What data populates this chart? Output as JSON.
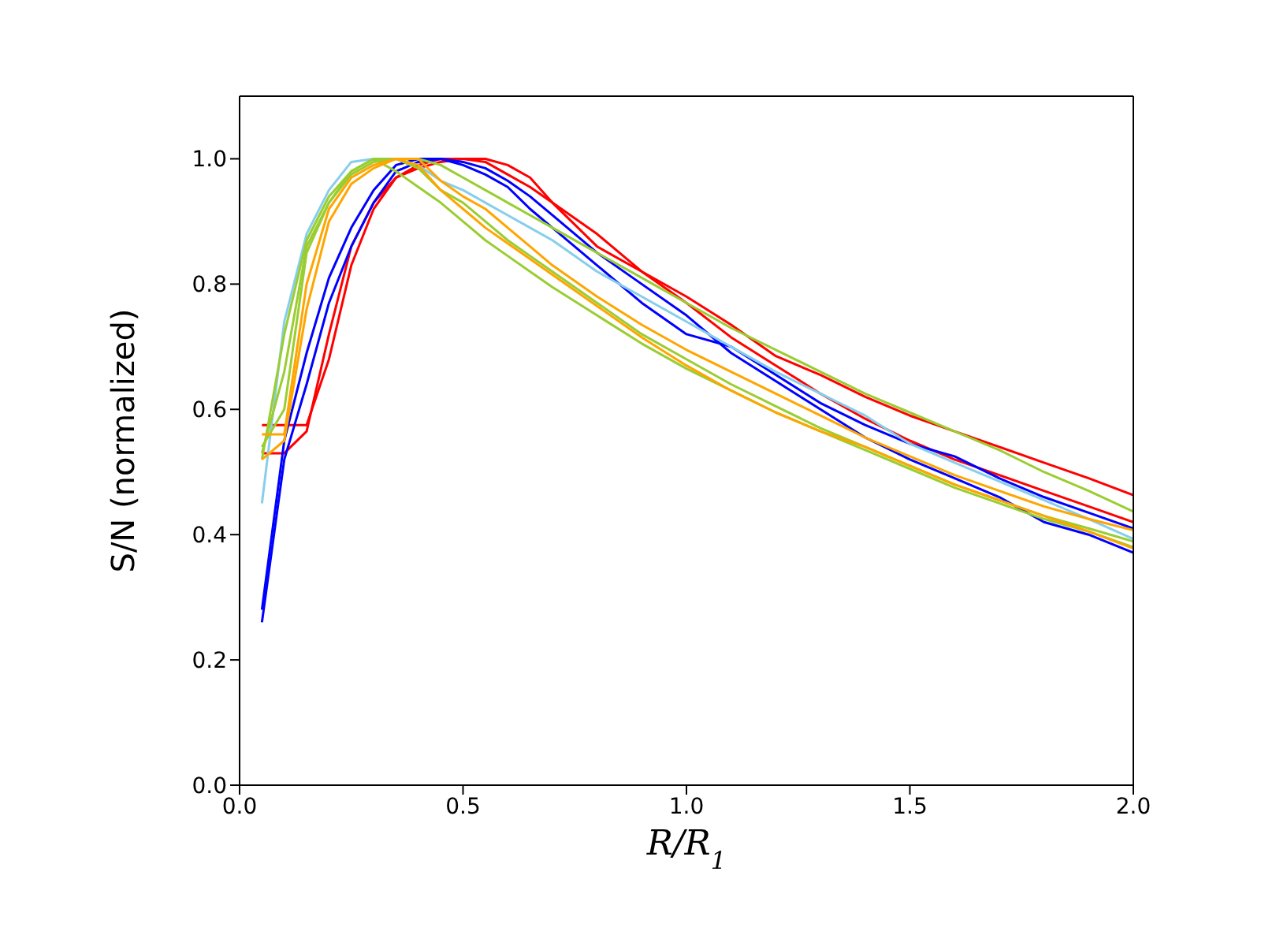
{
  "chart_data": {
    "type": "line",
    "xlabel": "R/R$_{1}$",
    "ylabel": "S/N (normalized)",
    "x": [
      0.05,
      0.1,
      0.15,
      0.2,
      0.25,
      0.3,
      0.35,
      0.4,
      0.45,
      0.5,
      0.55,
      0.6,
      0.65,
      0.7,
      0.8,
      0.9,
      1.0,
      1.1,
      1.2,
      1.3,
      1.4,
      1.5,
      1.6,
      1.7,
      1.8,
      1.9,
      2.0
    ],
    "series": [
      {
        "color": "#ff0000",
        "values": [
          0.575,
          0.575,
          0.575,
          0.68,
          0.83,
          0.92,
          0.97,
          0.99,
          1.0,
          1.0,
          1.0,
          0.99,
          0.97,
          0.93,
          0.86,
          0.82,
          0.78,
          0.735,
          0.685,
          0.655,
          0.62,
          0.59,
          0.565,
          0.54,
          0.515,
          0.49,
          0.463
        ]
      },
      {
        "color": "#ff0000",
        "values": [
          0.53,
          0.53,
          0.565,
          0.72,
          0.86,
          0.93,
          0.97,
          0.985,
          0.995,
          1.0,
          0.995,
          0.975,
          0.955,
          0.93,
          0.88,
          0.82,
          0.77,
          0.715,
          0.67,
          0.625,
          0.585,
          0.55,
          0.52,
          0.495,
          0.47,
          0.445,
          0.42
        ]
      },
      {
        "color": "#0000ff",
        "values": [
          0.28,
          0.55,
          0.69,
          0.81,
          0.89,
          0.95,
          0.99,
          1.0,
          1.0,
          0.99,
          0.975,
          0.955,
          0.92,
          0.89,
          0.83,
          0.77,
          0.72,
          0.7,
          0.655,
          0.61,
          0.575,
          0.545,
          0.525,
          0.49,
          0.46,
          0.435,
          0.41
        ]
      },
      {
        "color": "#0000ff",
        "values": [
          0.26,
          0.52,
          0.64,
          0.77,
          0.86,
          0.93,
          0.98,
          0.995,
          1.0,
          0.995,
          0.985,
          0.965,
          0.94,
          0.91,
          0.85,
          0.8,
          0.75,
          0.69,
          0.645,
          0.6,
          0.555,
          0.52,
          0.49,
          0.46,
          0.42,
          0.4,
          0.371
        ]
      },
      {
        "color": "#87ceeb",
        "values": [
          0.45,
          0.74,
          0.88,
          0.95,
          0.995,
          1.0,
          1.0,
          0.99,
          0.965,
          0.95,
          0.93,
          0.91,
          0.89,
          0.87,
          0.82,
          0.78,
          0.74,
          0.7,
          0.66,
          0.625,
          0.59,
          0.545,
          0.515,
          0.485,
          0.455,
          0.425,
          0.393
        ]
      },
      {
        "color": "#9acd32",
        "values": [
          0.53,
          0.66,
          0.86,
          0.93,
          0.975,
          0.995,
          1.0,
          1.0,
          0.99,
          0.97,
          0.95,
          0.93,
          0.91,
          0.89,
          0.85,
          0.81,
          0.77,
          0.73,
          0.695,
          0.66,
          0.625,
          0.595,
          0.565,
          0.535,
          0.5,
          0.47,
          0.437
        ]
      },
      {
        "color": "#9acd32",
        "values": [
          0.52,
          0.72,
          0.87,
          0.94,
          0.98,
          1.0,
          0.98,
          0.955,
          0.93,
          0.9,
          0.87,
          0.845,
          0.82,
          0.795,
          0.75,
          0.705,
          0.665,
          0.63,
          0.595,
          0.565,
          0.535,
          0.505,
          0.475,
          0.45,
          0.425,
          0.405,
          0.38
        ]
      },
      {
        "color": "#9acd32",
        "values": [
          0.54,
          0.6,
          0.85,
          0.93,
          0.98,
          1.0,
          1.0,
          0.985,
          0.95,
          0.93,
          0.9,
          0.87,
          0.845,
          0.82,
          0.77,
          0.72,
          0.68,
          0.64,
          0.605,
          0.57,
          0.54,
          0.51,
          0.48,
          0.455,
          0.43,
          0.41,
          0.389
        ]
      },
      {
        "color": "#ffa500",
        "values": [
          0.56,
          0.56,
          0.8,
          0.92,
          0.97,
          0.99,
          1.0,
          1.0,
          0.965,
          0.94,
          0.92,
          0.89,
          0.86,
          0.83,
          0.78,
          0.735,
          0.695,
          0.66,
          0.625,
          0.59,
          0.555,
          0.525,
          0.495,
          0.47,
          0.445,
          0.425,
          0.407
        ]
      },
      {
        "color": "#ffa500",
        "values": [
          0.52,
          0.55,
          0.76,
          0.9,
          0.96,
          0.985,
          1.0,
          0.99,
          0.95,
          0.92,
          0.89,
          0.865,
          0.84,
          0.815,
          0.765,
          0.715,
          0.67,
          0.63,
          0.595,
          0.565,
          0.54,
          0.51,
          0.48,
          0.455,
          0.43,
          0.405,
          0.378
        ]
      }
    ],
    "xlim": [
      0,
      2
    ],
    "xticks": [
      {
        "value": 0,
        "label": "0.0"
      },
      0.5,
      {
        "value": 1,
        "label": "1.0"
      },
      1.5,
      {
        "value": 2,
        "label": "2.0"
      }
    ],
    "ylim": [
      0,
      1.1
    ],
    "yticks": [
      {
        "value": 0,
        "label": "0.0"
      },
      0.2,
      0.4,
      0.6,
      0.8,
      {
        "value": 1,
        "label": "1.0"
      }
    ],
    "grid": false,
    "legend": false,
    "marker": "none",
    "line_style": "solid"
  }
}
